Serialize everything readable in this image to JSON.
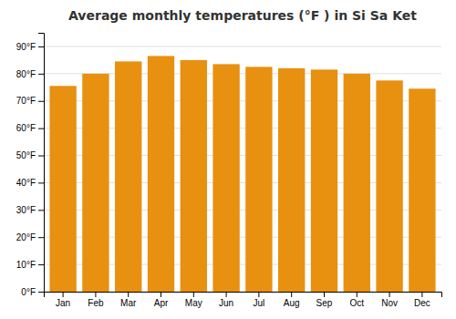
{
  "chart_data": {
    "type": "bar",
    "title": "Average monthly temperatures (°F ) in Si Sa Ket",
    "categories": [
      "Jan",
      "Feb",
      "Mar",
      "Apr",
      "May",
      "Jun",
      "Jul",
      "Aug",
      "Sep",
      "Oct",
      "Nov",
      "Dec"
    ],
    "values": [
      75.5,
      80.0,
      84.5,
      86.5,
      85.0,
      83.5,
      82.5,
      82.0,
      81.5,
      80.0,
      77.5,
      74.5
    ],
    "color": "#E89010",
    "ylim": [
      0,
      95
    ],
    "yticks": [
      {
        "value": 0,
        "label": "0°F"
      },
      {
        "value": 10,
        "label": "10°F"
      },
      {
        "value": 20,
        "label": "20°F"
      },
      {
        "value": 30,
        "label": "30°F"
      },
      {
        "value": 40,
        "label": "40°F"
      },
      {
        "value": 50,
        "label": "50°F"
      },
      {
        "value": 60,
        "label": "60°F"
      },
      {
        "value": 70,
        "label": "70°F"
      },
      {
        "value": 80,
        "label": "80°F"
      },
      {
        "value": 90,
        "label": "90°F"
      }
    ],
    "grid": true
  }
}
